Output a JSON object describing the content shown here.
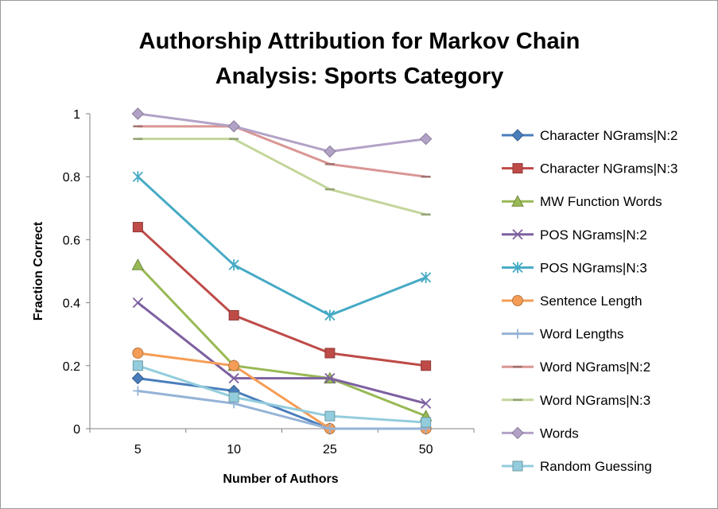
{
  "chart_data": {
    "type": "line",
    "title_lines": [
      "Authorship Attribution for Markov Chain",
      "Analysis: Sports Category"
    ],
    "xlabel": "Number of Authors",
    "ylabel": "Fraction Correct",
    "categories": [
      "5",
      "10",
      "25",
      "50"
    ],
    "ylim": [
      0,
      1
    ],
    "yticks": [
      0,
      0.2,
      0.4,
      0.6,
      0.8,
      1
    ],
    "ytick_labels": [
      "0",
      "0.2",
      "0.4",
      "0.6",
      "0.8",
      "1"
    ],
    "grid": false,
    "legend_position": "right",
    "series": [
      {
        "name": "Character NGrams|N:2",
        "color": "#4a7ebb",
        "marker": "diamond",
        "values": [
          0.16,
          0.12,
          0.0,
          0.0
        ]
      },
      {
        "name": "Character NGrams|N:3",
        "color": "#be4b48",
        "marker": "square",
        "values": [
          0.64,
          0.36,
          0.24,
          0.2
        ]
      },
      {
        "name": "MW Function Words",
        "color": "#98b954",
        "marker": "triangle",
        "values": [
          0.52,
          0.2,
          0.16,
          0.04
        ]
      },
      {
        "name": "POS NGrams|N:2",
        "color": "#7d60a0",
        "marker": "x",
        "values": [
          0.4,
          0.16,
          0.16,
          0.08
        ]
      },
      {
        "name": "POS NGrams|N:3",
        "color": "#46aac5",
        "marker": "star",
        "values": [
          0.8,
          0.52,
          0.36,
          0.48
        ]
      },
      {
        "name": "Sentence Length",
        "color": "#f59d56",
        "marker": "circle",
        "values": [
          0.24,
          0.2,
          0.0,
          0.0
        ]
      },
      {
        "name": "Word Lengths",
        "color": "#95b3d7",
        "marker": "plus",
        "values": [
          0.12,
          0.08,
          0.0,
          0.0
        ]
      },
      {
        "name": "Word NGrams|N:2",
        "color": "#d99694",
        "marker": "dash",
        "values": [
          0.96,
          0.96,
          0.84,
          0.8
        ]
      },
      {
        "name": "Word NGrams|N:3",
        "color": "#c3d69b",
        "marker": "dash",
        "values": [
          0.92,
          0.92,
          0.76,
          0.68
        ]
      },
      {
        "name": "Words",
        "color": "#b3a2c7",
        "marker": "diamond",
        "values": [
          1.0,
          0.96,
          0.88,
          0.92
        ]
      },
      {
        "name": "Random Guessing",
        "color": "#93cddd",
        "marker": "square",
        "values": [
          0.2,
          0.1,
          0.04,
          0.02
        ]
      }
    ]
  }
}
